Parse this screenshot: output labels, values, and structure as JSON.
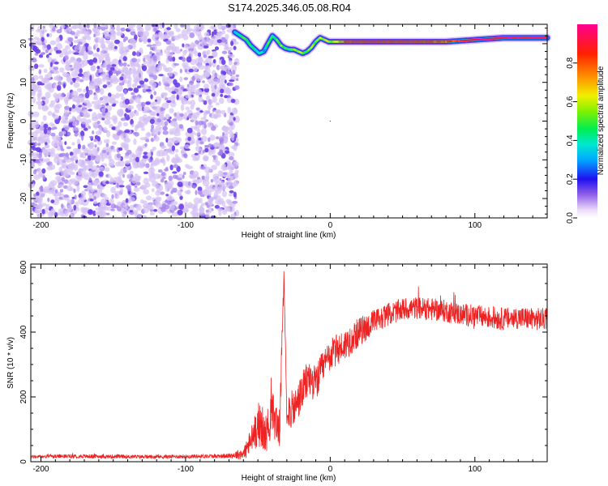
{
  "title": "S174.2025.346.05.08.R04",
  "chart_data": [
    {
      "type": "heatmap",
      "name": "spectrogram",
      "xlabel": "Height of straight line (km)",
      "ylabel": "Frequency (Hz)",
      "xlim": [
        -207,
        150
      ],
      "ylim": [
        -25,
        25
      ],
      "xticks": [
        -200,
        -100,
        0,
        100
      ],
      "yticks": [
        -20,
        -10,
        0,
        10,
        20
      ],
      "noise_region_x": [
        -207,
        -63
      ],
      "ridge": {
        "x": [
          -66,
          -62,
          -58,
          -55,
          -52,
          -49,
          -46,
          -43,
          -40,
          -37,
          -34,
          -31,
          -28,
          -25,
          -22,
          -19,
          -16,
          -13,
          -10,
          -7,
          -4,
          -1,
          0,
          10,
          20,
          40,
          60,
          80,
          100,
          120,
          150
        ],
        "freq": [
          23,
          22,
          21,
          19.5,
          18.5,
          17.5,
          18,
          20,
          22,
          21,
          19.5,
          18.8,
          18.5,
          18.5,
          18,
          17.5,
          18,
          19,
          20.5,
          21.5,
          21,
          20.5,
          20.5,
          20.5,
          20.5,
          20.5,
          20.5,
          20.5,
          21,
          21.5,
          21.5
        ],
        "amplitude": [
          0.35,
          0.45,
          0.5,
          0.45,
          0.4,
          0.45,
          0.35,
          0.5,
          0.45,
          0.5,
          0.55,
          0.5,
          0.45,
          0.55,
          0.6,
          0.5,
          0.55,
          0.6,
          0.5,
          0.55,
          0.6,
          0.6,
          0.55,
          0.85,
          0.9,
          0.9,
          0.9,
          0.8,
          0.95,
          0.95,
          0.9
        ]
      }
    },
    {
      "type": "line",
      "name": "snr",
      "xlabel": "Height of straight line (km)",
      "ylabel": "SNR (10 * v/v)",
      "xlim": [
        -207,
        150
      ],
      "ylim": [
        0,
        610
      ],
      "xticks": [
        -200,
        -100,
        0,
        100
      ],
      "yticks": [
        0,
        200,
        400,
        600
      ],
      "series": [
        {
          "name": "SNR",
          "color": "#ee2222",
          "x": [
            -207,
            -180,
            -150,
            -120,
            -90,
            -70,
            -60,
            -55,
            -50,
            -45,
            -40,
            -35,
            -32,
            -30,
            -25,
            -20,
            -15,
            -10,
            -5,
            0,
            10,
            20,
            30,
            40,
            50,
            60,
            70,
            80,
            90,
            100,
            110,
            120,
            130,
            140,
            150
          ],
          "y": [
            15,
            17,
            16,
            15,
            17,
            18,
            25,
            60,
            120,
            80,
            150,
            100,
            590,
            160,
            160,
            210,
            260,
            240,
            290,
            330,
            360,
            400,
            430,
            455,
            470,
            475,
            470,
            465,
            455,
            450,
            445,
            440,
            445,
            440,
            440
          ],
          "noise": [
            5,
            6,
            6,
            6,
            6,
            7,
            20,
            45,
            70,
            60,
            70,
            60,
            5,
            60,
            60,
            60,
            60,
            55,
            55,
            50,
            50,
            45,
            40,
            35,
            35,
            35,
            35,
            35,
            35,
            35,
            35,
            35,
            35,
            35,
            35
          ]
        }
      ]
    }
  ],
  "colorbar": {
    "label": "Normalized spectral amplitude",
    "ticks": [
      "0.0",
      "0.2",
      "0.4",
      "0.6",
      "0.8"
    ],
    "tick_values": [
      0,
      0.2,
      0.4,
      0.6,
      0.8
    ],
    "range": [
      0,
      1
    ]
  }
}
